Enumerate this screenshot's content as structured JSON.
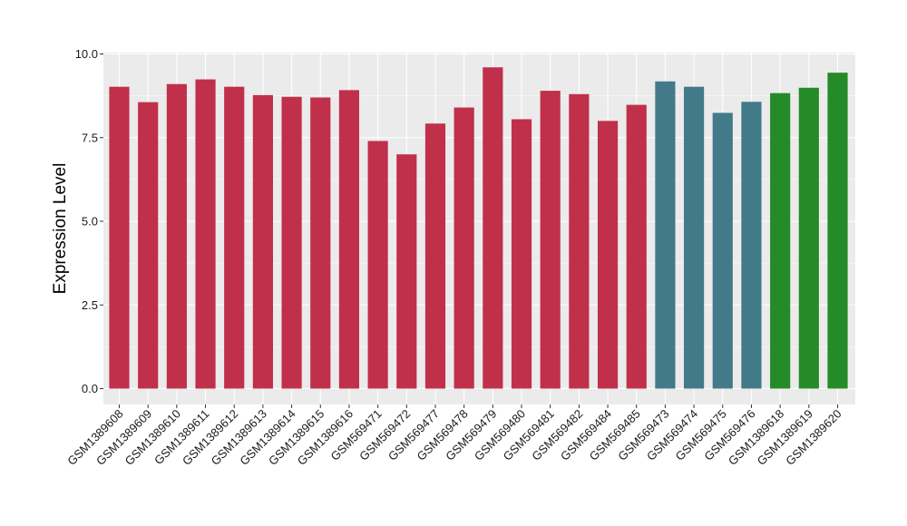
{
  "chart_data": {
    "type": "bar",
    "title": "",
    "xlabel": "",
    "ylabel": "Expression Level",
    "ylim": [
      0,
      10
    ],
    "yticks": [
      "0.0",
      "2.5",
      "5.0",
      "7.5",
      "10.0"
    ],
    "grid": true,
    "categories": [
      "GSM1389608",
      "GSM1389609",
      "GSM1389610",
      "GSM1389611",
      "GSM1389612",
      "GSM1389613",
      "GSM1389614",
      "GSM1389615",
      "GSM1389616",
      "GSM569471",
      "GSM569472",
      "GSM569477",
      "GSM569478",
      "GSM569479",
      "GSM569480",
      "GSM569481",
      "GSM569482",
      "GSM569484",
      "GSM569485",
      "GSM569473",
      "GSM569474",
      "GSM569475",
      "GSM569476",
      "GSM1389618",
      "GSM1389619",
      "GSM1389620"
    ],
    "values": [
      9.02,
      8.56,
      9.1,
      9.24,
      9.02,
      8.77,
      8.72,
      8.7,
      8.92,
      7.4,
      7.0,
      7.92,
      8.4,
      9.6,
      8.05,
      8.9,
      8.8,
      8.0,
      8.48,
      9.18,
      9.02,
      8.24,
      8.57,
      8.83,
      8.99,
      9.44
    ],
    "colors": [
      "#c0304a",
      "#c0304a",
      "#c0304a",
      "#c0304a",
      "#c0304a",
      "#c0304a",
      "#c0304a",
      "#c0304a",
      "#c0304a",
      "#c0304a",
      "#c0304a",
      "#c0304a",
      "#c0304a",
      "#c0304a",
      "#c0304a",
      "#c0304a",
      "#c0304a",
      "#c0304a",
      "#c0304a",
      "#427a8a",
      "#427a8a",
      "#427a8a",
      "#427a8a",
      "#258b28",
      "#258b28",
      "#258b28"
    ],
    "panel_background": "#ebebeb",
    "grid_color": "#ffffff"
  }
}
